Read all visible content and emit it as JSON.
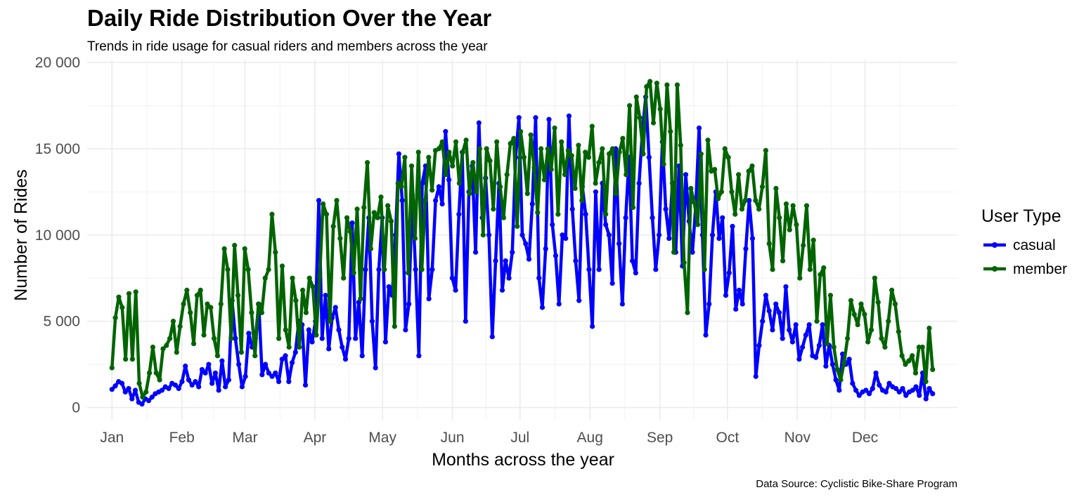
{
  "chart_data": {
    "type": "line",
    "title": "Daily Ride Distribution Over the Year",
    "subtitle": "Trends in ride usage for casual riders and members across the year",
    "xlabel": "Months across the year",
    "ylabel": "Number of Rides",
    "caption": "Data Source: Cyclistic Bike-Share Program",
    "ylim": [
      0,
      20000
    ],
    "xlim": [
      "2023-01-01",
      "2023-12-31"
    ],
    "y_ticks": [
      0,
      5000,
      10000,
      15000,
      20000
    ],
    "y_tick_labels": [
      "0",
      "5 000",
      "10 000",
      "15 000",
      "20 000"
    ],
    "x_ticks": [
      "2023-01-01",
      "2023-02-01",
      "2023-03-01",
      "2023-04-01",
      "2023-05-01",
      "2023-06-01",
      "2023-07-01",
      "2023-08-01",
      "2023-09-01",
      "2023-10-01",
      "2023-11-01",
      "2023-12-01"
    ],
    "x_tick_labels": [
      "Jan",
      "Feb",
      "Mar",
      "Apr",
      "May",
      "Jun",
      "Jul",
      "Aug",
      "Sep",
      "Oct",
      "Nov",
      "Dec"
    ],
    "grid": true,
    "legend": {
      "title": "User Type",
      "position": "right"
    },
    "point_interval_days": 2,
    "series": [
      {
        "name": "casual",
        "color": "#0000ff",
        "values": [
          1050,
          1250,
          1500,
          1400,
          900,
          1100,
          500,
          1000,
          300,
          200,
          500,
          400,
          600,
          800,
          900,
          1000,
          1200,
          1100,
          1400,
          1300,
          1100,
          1500,
          2400,
          1600,
          1300,
          1500,
          1200,
          2200,
          2000,
          2500,
          1400,
          2000,
          1000,
          2700,
          1200,
          1600,
          6200,
          4000,
          2500,
          1200,
          1800,
          4300,
          3500,
          4000,
          6000,
          1900,
          2500,
          2000,
          1800,
          2000,
          1500,
          2800,
          3000,
          1500,
          2600,
          3200,
          5000,
          4800,
          1300,
          4500,
          3800,
          5000,
          12000,
          4000,
          6500,
          3400,
          5200,
          5800,
          4500,
          3500,
          2800,
          4000,
          10700,
          4000,
          6100,
          3000,
          8000,
          11000,
          5000,
          2300,
          8000,
          11000,
          3800,
          7000,
          6500,
          10000,
          14700,
          12000,
          4500,
          6000,
          12300,
          8000,
          3000,
          13000,
          14000,
          6300,
          8000,
          12000,
          12800,
          11800,
          16000,
          13200,
          7500,
          6800,
          11200,
          14800,
          5000,
          12500,
          14000,
          9000,
          16500,
          11000,
          13300,
          10000,
          4100,
          8500,
          13000,
          6800,
          8500,
          7500,
          9000,
          14500,
          16800,
          10000,
          9500,
          8600,
          11800,
          16800,
          7500,
          5800,
          9200,
          16700,
          10600,
          8800,
          6000,
          10000,
          9800,
          16900,
          11500,
          8500,
          6200,
          12800,
          11200,
          8000,
          4700,
          12500,
          8000,
          13000,
          10600,
          10000,
          7200,
          15000,
          9500,
          6000,
          11000,
          14500,
          8500,
          7800,
          13000,
          16000,
          18000,
          14500,
          11000,
          8000,
          10000,
          15400,
          11500,
          9800,
          13000,
          9000,
          14000,
          8200,
          13500,
          10800,
          9000,
          11700,
          16200,
          10000,
          4200,
          6000,
          10000,
          12500,
          9800,
          11000,
          6500,
          7800,
          10500,
          5700,
          6800,
          6000,
          9200,
          12000,
          9800,
          1800,
          3600,
          5000,
          6500,
          5600,
          4500,
          6000,
          5500,
          4000,
          7000,
          4500,
          3800,
          4800,
          2800,
          3500,
          4200,
          4800,
          3000,
          2900,
          3600,
          4800,
          2400,
          3600,
          2500,
          1600,
          1000,
          3100,
          2500,
          2800,
          1400,
          1000,
          700,
          900,
          1000,
          800,
          1100,
          2000,
          1300,
          1000,
          900,
          1400,
          1200,
          1100,
          900,
          1100,
          700,
          900,
          1000,
          1200,
          700,
          2000,
          500,
          1100,
          800
        ]
      },
      {
        "name": "member",
        "color": "#006400",
        "values": [
          2300,
          5200,
          6400,
          5800,
          2800,
          6600,
          2800,
          6700,
          1400,
          600,
          900,
          2000,
          3500,
          2000,
          1600,
          3400,
          3600,
          4000,
          5000,
          3200,
          4700,
          6000,
          6800,
          5500,
          3700,
          6500,
          6800,
          4200,
          6000,
          5800,
          4000,
          3000,
          6000,
          9200,
          8000,
          4000,
          9400,
          6500,
          3200,
          9200,
          8000,
          5500,
          3000,
          6000,
          5500,
          7500,
          8000,
          11200,
          9000,
          4000,
          8200,
          4500,
          3500,
          7500,
          6200,
          3500,
          6800,
          5500,
          7500,
          7000,
          4200,
          7600,
          11800,
          11200,
          5000,
          10500,
          12000,
          9800,
          7500,
          11000,
          10200,
          7800,
          11500,
          6300,
          11600,
          14200,
          9200,
          11300,
          11000,
          12200,
          8000,
          11700,
          10800,
          4700,
          13000,
          12800,
          14500,
          7800,
          14000,
          9800,
          14800,
          8000,
          12000,
          14500,
          12600,
          14900,
          15000,
          15400,
          13500,
          14800,
          14000,
          15400,
          13000,
          14800,
          15500,
          12400,
          14200,
          12500,
          15000,
          10000,
          15000,
          14300,
          11500,
          15400,
          12800,
          11000,
          13500,
          15300,
          15600,
          10500,
          16000,
          14500,
          12400,
          15800,
          13900,
          11300,
          15000,
          13200,
          15000,
          13800,
          16200,
          11200,
          15400,
          13500,
          14900,
          14600,
          12700,
          15200,
          12000,
          14800,
          14500,
          16300,
          13000,
          14200,
          15000,
          11200,
          14700,
          15000,
          12400,
          14800,
          15600,
          13500,
          17500,
          11600,
          18000,
          16800,
          14700,
          18600,
          18900,
          16500,
          18800,
          17300,
          14100,
          18700,
          16000,
          9000,
          18700,
          15200,
          8400,
          5500,
          12700,
          11900,
          10600,
          14700,
          8000,
          15500,
          13700,
          13800,
          12100,
          12500,
          15000,
          14500,
          12500,
          11200,
          13500,
          11500,
          12000,
          13700,
          14000,
          12000,
          11500,
          12800,
          14900,
          9500,
          8000,
          12700,
          11000,
          8500,
          11800,
          10300,
          11700,
          10600,
          7500,
          9400,
          11700,
          8000,
          9700,
          5000,
          7700,
          8100,
          3700,
          6500,
          3500,
          2200,
          1600,
          2600,
          4000,
          6200,
          5400,
          4800,
          6000,
          5400,
          3800,
          4500,
          7500,
          6100,
          4000,
          3500,
          5000,
          6800,
          6000,
          4400,
          3000,
          2500,
          2700,
          3000,
          2000,
          3500,
          3500,
          1500,
          4600,
          2200
        ]
      }
    ]
  }
}
